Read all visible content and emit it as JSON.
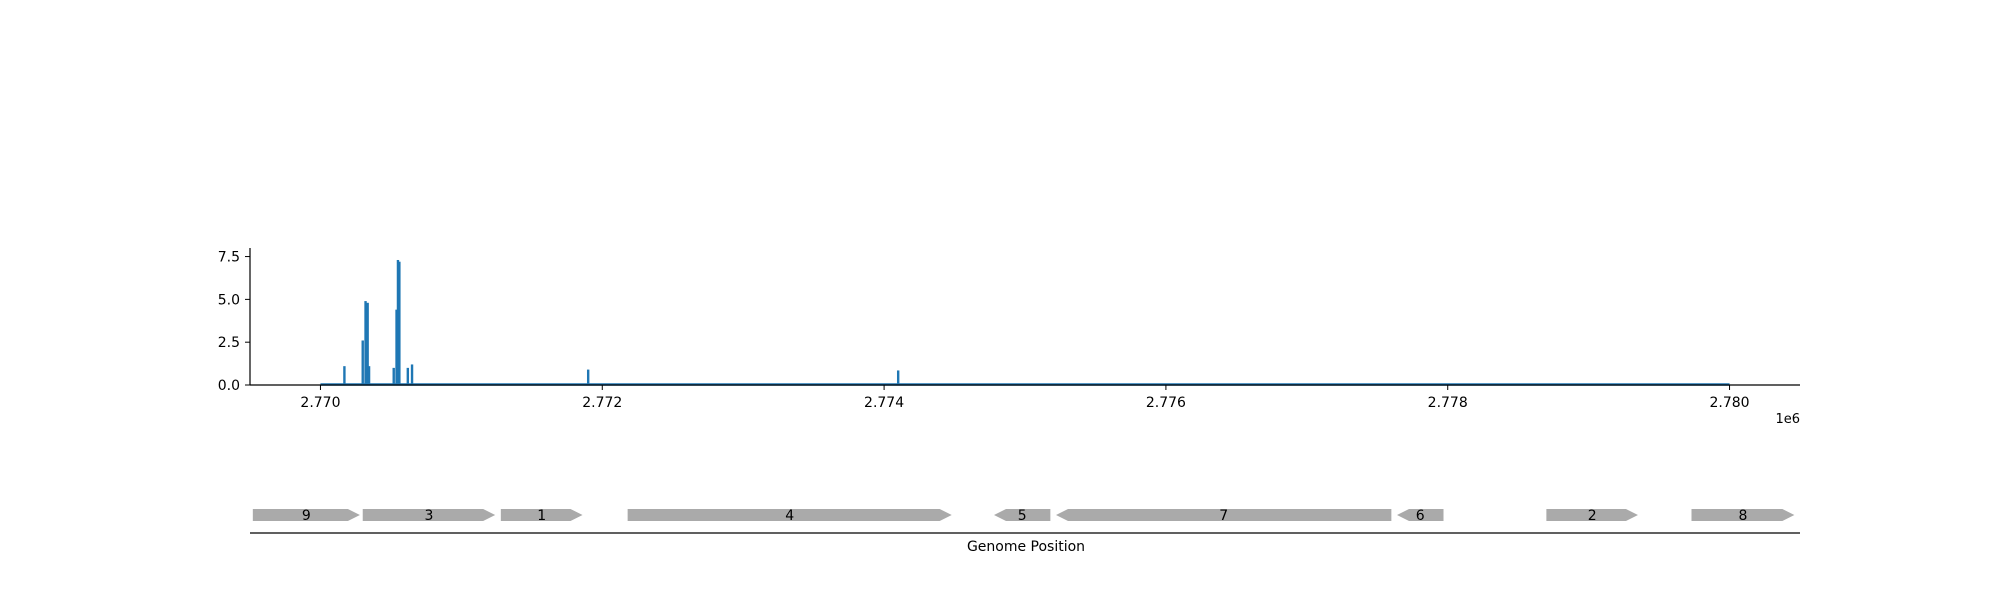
{
  "chart_data": [
    {
      "type": "bar",
      "title": "",
      "xlabel": "",
      "ylabel": "",
      "x_offset_label": "1e6",
      "xlim": [
        2769500,
        2780500
      ],
      "ylim": [
        0,
        8.0
      ],
      "x_ticks": [
        2770000,
        2772000,
        2774000,
        2776000,
        2778000,
        2780000
      ],
      "x_tick_labels": [
        "2.770",
        "2.772",
        "2.774",
        "2.776",
        "2.778",
        "2.780"
      ],
      "y_ticks": [
        0.0,
        2.5,
        5.0,
        7.5
      ],
      "y_tick_labels": [
        "0.0",
        "2.5",
        "5.0",
        "7.5"
      ],
      "baseline_range": [
        2770000,
        2780000
      ],
      "grid": false,
      "legend": "none",
      "color": "#1f77b4",
      "x": [
        2770170,
        2770300,
        2770320,
        2770335,
        2770345,
        2770520,
        2770540,
        2770550,
        2770560,
        2770620,
        2770650,
        2771900,
        2774100
      ],
      "values": [
        1.1,
        2.6,
        4.9,
        4.8,
        1.1,
        1.0,
        4.4,
        7.3,
        7.2,
        1.0,
        1.2,
        0.9,
        0.85
      ]
    },
    {
      "type": "gene-track",
      "xlabel": "Genome Position",
      "color": "#aaaaaa",
      "genes": [
        {
          "label": "9",
          "start": 2769520,
          "end": 2770280,
          "strand": "+"
        },
        {
          "label": "3",
          "start": 2770300,
          "end": 2771240,
          "strand": "+"
        },
        {
          "label": "1",
          "start": 2771280,
          "end": 2771860,
          "strand": "+"
        },
        {
          "label": "4",
          "start": 2772180,
          "end": 2774480,
          "strand": "+"
        },
        {
          "label": "5",
          "start": 2774780,
          "end": 2775180,
          "strand": "-"
        },
        {
          "label": "7",
          "start": 2775220,
          "end": 2777600,
          "strand": "-"
        },
        {
          "label": "6",
          "start": 2777640,
          "end": 2777970,
          "strand": "-"
        },
        {
          "label": "2",
          "start": 2778700,
          "end": 2779350,
          "strand": "+"
        },
        {
          "label": "8",
          "start": 2779730,
          "end": 2780460,
          "strand": "+"
        }
      ]
    }
  ]
}
